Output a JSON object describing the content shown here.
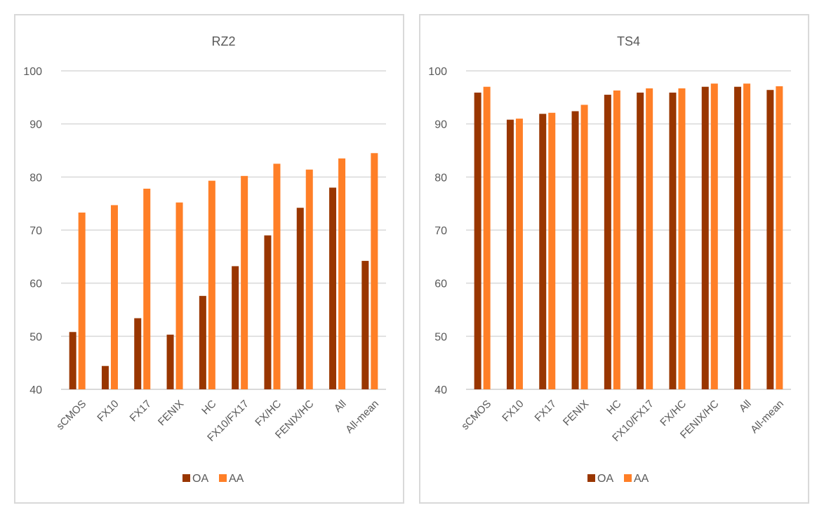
{
  "chart_data": [
    {
      "type": "bar",
      "title": "RZ2",
      "xlabel": "",
      "ylabel": "",
      "ylim": [
        40,
        100
      ],
      "yticks": [
        40,
        50,
        60,
        70,
        80,
        90,
        100
      ],
      "grid": true,
      "legend": "bottom",
      "categories": [
        "sCMOS",
        "FX10",
        "FX17",
        "FENIX",
        "HC",
        "FX10/FX17",
        "FX/HC",
        "FENIX/HC",
        "All",
        "All-mean"
      ],
      "series": [
        {
          "name": "OA",
          "color": "#993600",
          "values": [
            50.8,
            44.4,
            53.4,
            50.3,
            57.6,
            63.2,
            69.0,
            74.2,
            78.0,
            64.2
          ]
        },
        {
          "name": "AA",
          "color": "#ff7f27",
          "values": [
            73.3,
            74.7,
            77.8,
            75.2,
            79.3,
            80.2,
            82.5,
            81.4,
            83.5,
            84.5
          ]
        }
      ]
    },
    {
      "type": "bar",
      "title": "TS4",
      "xlabel": "",
      "ylabel": "",
      "ylim": [
        40,
        100
      ],
      "yticks": [
        40,
        50,
        60,
        70,
        80,
        90,
        100
      ],
      "grid": true,
      "legend": "bottom",
      "categories": [
        "sCMOS",
        "FX10",
        "FX17",
        "FENIX",
        "HC",
        "FX10/FX17",
        "FX/HC",
        "FENIX/HC",
        "All",
        "All-mean"
      ],
      "series": [
        {
          "name": "OA",
          "color": "#993600",
          "values": [
            95.9,
            90.8,
            91.9,
            92.4,
            95.5,
            95.9,
            95.9,
            97.0,
            97.0,
            96.4
          ]
        },
        {
          "name": "AA",
          "color": "#ff7f27",
          "values": [
            97.0,
            91.0,
            92.1,
            93.6,
            96.3,
            96.7,
            96.7,
            97.6,
            97.6,
            97.1
          ]
        }
      ]
    }
  ]
}
